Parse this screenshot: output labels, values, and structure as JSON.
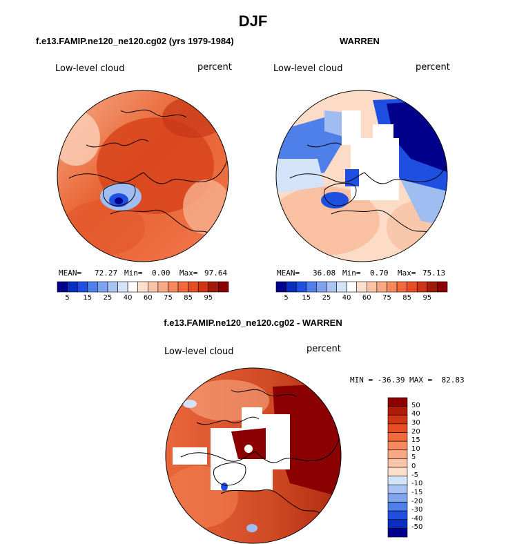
{
  "title": "DJF",
  "palette": {
    "blue_dark": "#00008b",
    "blue": "#1f4fe0",
    "blue_light": "#9fbdf0",
    "blue_pale": "#d4e4f8",
    "white": "#ffffff",
    "orange_pale": "#fde0cc",
    "orange_light": "#f8a882",
    "orange": "#f26a3c",
    "red": "#d8401c",
    "red_dark": "#8b0000"
  },
  "chart_data": [
    {
      "type": "heatmap",
      "projection": "north-polar-stereographic",
      "title": "f.e13.FAMIP.ne120_ne120.cg02 (yrs 1979-1984)",
      "left_label": "Low-level cloud",
      "right_label": "percent",
      "stats": {
        "mean_label": "MEAN=",
        "mean": "72.27",
        "min_label": "Min=",
        "min": "0.00",
        "max_label": "Max=",
        "max": "97.64"
      },
      "colorbar": {
        "orientation": "horizontal",
        "tick_labels": [
          "5",
          "15",
          "25",
          "40",
          "60",
          "75",
          "85",
          "95"
        ]
      }
    },
    {
      "type": "heatmap",
      "projection": "north-polar-stereographic",
      "title": "WARREN",
      "left_label": "Low-level cloud",
      "right_label": "percent",
      "stats": {
        "mean_label": "MEAN=",
        "mean": "36.08",
        "min_label": "Min=",
        "min": "0.70",
        "max_label": "Max=",
        "max": "75.13"
      },
      "colorbar": {
        "orientation": "horizontal",
        "tick_labels": [
          "5",
          "15",
          "25",
          "40",
          "60",
          "75",
          "85",
          "95"
        ]
      }
    },
    {
      "type": "heatmap",
      "projection": "north-polar-stereographic",
      "title": "f.e13.FAMIP.ne120_ne120.cg02 - WARREN",
      "left_label": "Low-level cloud",
      "right_label": "percent",
      "minmax_text": "MIN = -36.39 MAX =  82.83",
      "colorbar": {
        "orientation": "vertical",
        "tick_labels": [
          "50",
          "40",
          "30",
          "20",
          "15",
          "10",
          "5",
          "0",
          "-5",
          "-10",
          "-15",
          "-20",
          "-30",
          "-40",
          "-50"
        ]
      }
    }
  ]
}
